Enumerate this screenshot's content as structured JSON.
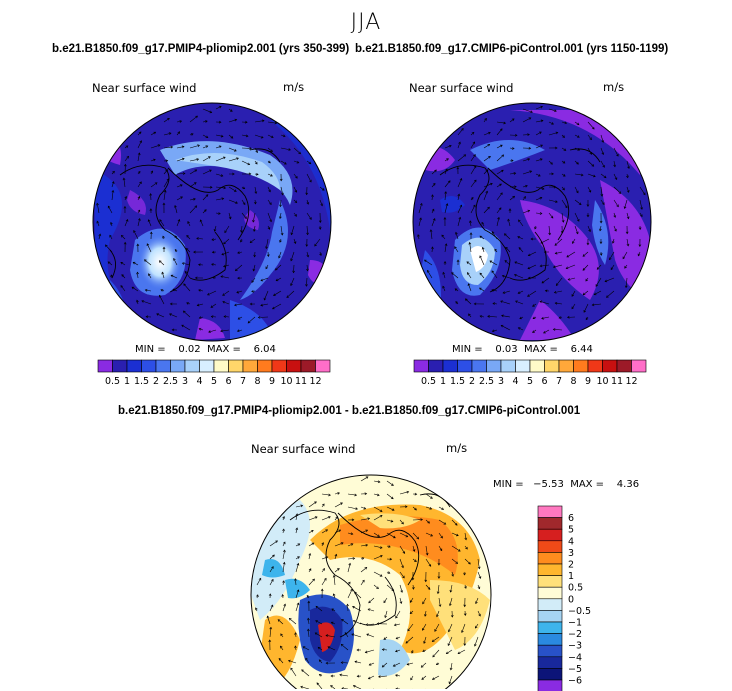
{
  "figure": {
    "season": "JJA",
    "panel_left_title": "b.e21.B1850.f09_g17.PMIP4-pliomip2.001 (yrs 350-399)",
    "panel_right_title": "b.e21.B1850.f09_g17.CMIP6-piControl.001 (yrs 1150-1199)",
    "panel_diff_title": "b.e21.B1850.f09_g17.PMIP4-pliomip2.001 - b.e21.B1850.f09_g17.CMIP6-piControl.001",
    "variable": "Near surface wind",
    "units": "m/s"
  },
  "chart_data": [
    {
      "type": "heatmap",
      "projection": "north polar stereographic",
      "title": "b.e21.B1850.f09_g17.PMIP4-pliomip2.001 (yrs 350-399)",
      "subtitle": "Near surface wind",
      "units": "m/s",
      "min_label": "MIN =",
      "min": "0.02",
      "max_label": "MAX =",
      "max": "6.04",
      "colorbar_levels": [
        "0.5",
        "1",
        "1.5",
        "2",
        "2.5",
        "3",
        "4",
        "5",
        "6",
        "7",
        "8",
        "9",
        "10",
        "11",
        "12"
      ],
      "colorbar_colors": [
        "#8a2be2",
        "#2a1fb0",
        "#1b2fd2",
        "#2d4fe6",
        "#4a76ef",
        "#79a8f6",
        "#a8d1fa",
        "#d8efff",
        "#fffbc8",
        "#ffd66a",
        "#ffa83a",
        "#ff7b1e",
        "#f03818",
        "#c81010",
        "#9c1a28",
        "#ff6ec8"
      ]
    },
    {
      "type": "heatmap",
      "projection": "north polar stereographic",
      "title": "b.e21.B1850.f09_g17.CMIP6-piControl.001 (yrs 1150-1199)",
      "subtitle": "Near surface wind",
      "units": "m/s",
      "min_label": "MIN =",
      "min": "0.03",
      "max_label": "MAX =",
      "max": "6.44",
      "colorbar_levels": [
        "0.5",
        "1",
        "1.5",
        "2",
        "2.5",
        "3",
        "4",
        "5",
        "6",
        "7",
        "8",
        "9",
        "10",
        "11",
        "12"
      ],
      "colorbar_colors": [
        "#8a2be2",
        "#2a1fb0",
        "#1b2fd2",
        "#2d4fe6",
        "#4a76ef",
        "#79a8f6",
        "#a8d1fa",
        "#d8efff",
        "#fffbc8",
        "#ffd66a",
        "#ffa83a",
        "#ff7b1e",
        "#f03818",
        "#c81010",
        "#9c1a28",
        "#ff6ec8"
      ]
    },
    {
      "type": "heatmap",
      "projection": "north polar stereographic",
      "title": "b.e21.B1850.f09_g17.PMIP4-pliomip2.001 - b.e21.B1850.f09_g17.CMIP6-piControl.001",
      "subtitle": "Near surface wind",
      "units": "m/s",
      "min_label": "MIN =",
      "min": "−5.53",
      "max_label": "MAX =",
      "max": "4.36",
      "colorbar_levels": [
        "6",
        "5",
        "4",
        "3",
        "2",
        "1",
        "0.5",
        "0",
        "−0.5",
        "−1",
        "−2",
        "−3",
        "−4",
        "−5",
        "−6"
      ],
      "colorbar_colors": [
        "#ff78c0",
        "#a0282c",
        "#d61f1f",
        "#f04a18",
        "#ff8c1e",
        "#ffb62e",
        "#ffe07a",
        "#fffcd6",
        "#d2ecf8",
        "#a6d4f2",
        "#3db4ec",
        "#2a8ae0",
        "#2852c8",
        "#18289c",
        "#0c1478",
        "#8a2be2"
      ]
    }
  ]
}
